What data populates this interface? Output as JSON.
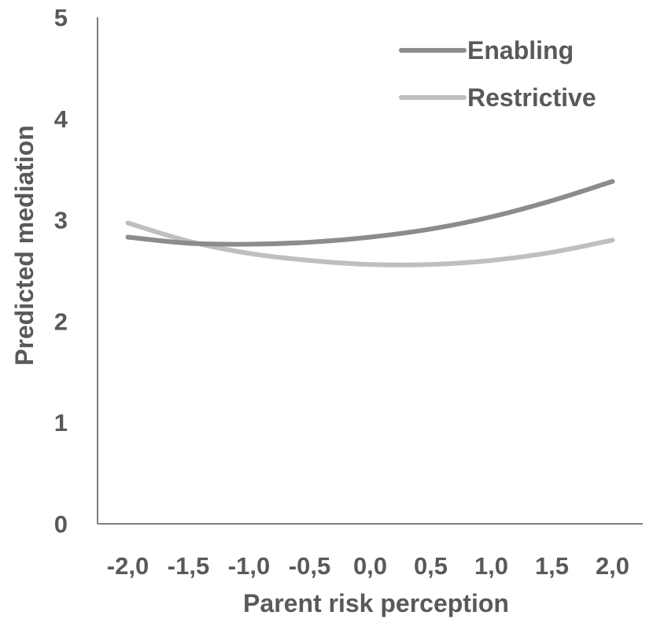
{
  "chart_data": {
    "type": "line",
    "title": "",
    "xlabel": "Parent risk perception",
    "ylabel": "Predicted mediation",
    "x": [
      "-2,0",
      "-1,5",
      "-1,0",
      "-0,5",
      "0,0",
      "0,5",
      "1,0",
      "1,5",
      "2,0"
    ],
    "x_values": [
      -2.0,
      -1.5,
      -1.0,
      -0.5,
      0.0,
      0.5,
      1.0,
      1.5,
      2.0
    ],
    "yticks": [
      "0",
      "1",
      "2",
      "3",
      "4",
      "5"
    ],
    "ylim": [
      0,
      5
    ],
    "grid": false,
    "legend_position": "top-right",
    "series": [
      {
        "name": "Enabling",
        "color": "#8c8c8c",
        "values": [
          2.83,
          2.77,
          2.76,
          2.78,
          2.83,
          2.91,
          3.03,
          3.19,
          3.38
        ]
      },
      {
        "name": "Restrictive",
        "color": "#bfbfbf",
        "values": [
          2.97,
          2.79,
          2.67,
          2.6,
          2.56,
          2.56,
          2.6,
          2.68,
          2.8
        ]
      }
    ]
  }
}
